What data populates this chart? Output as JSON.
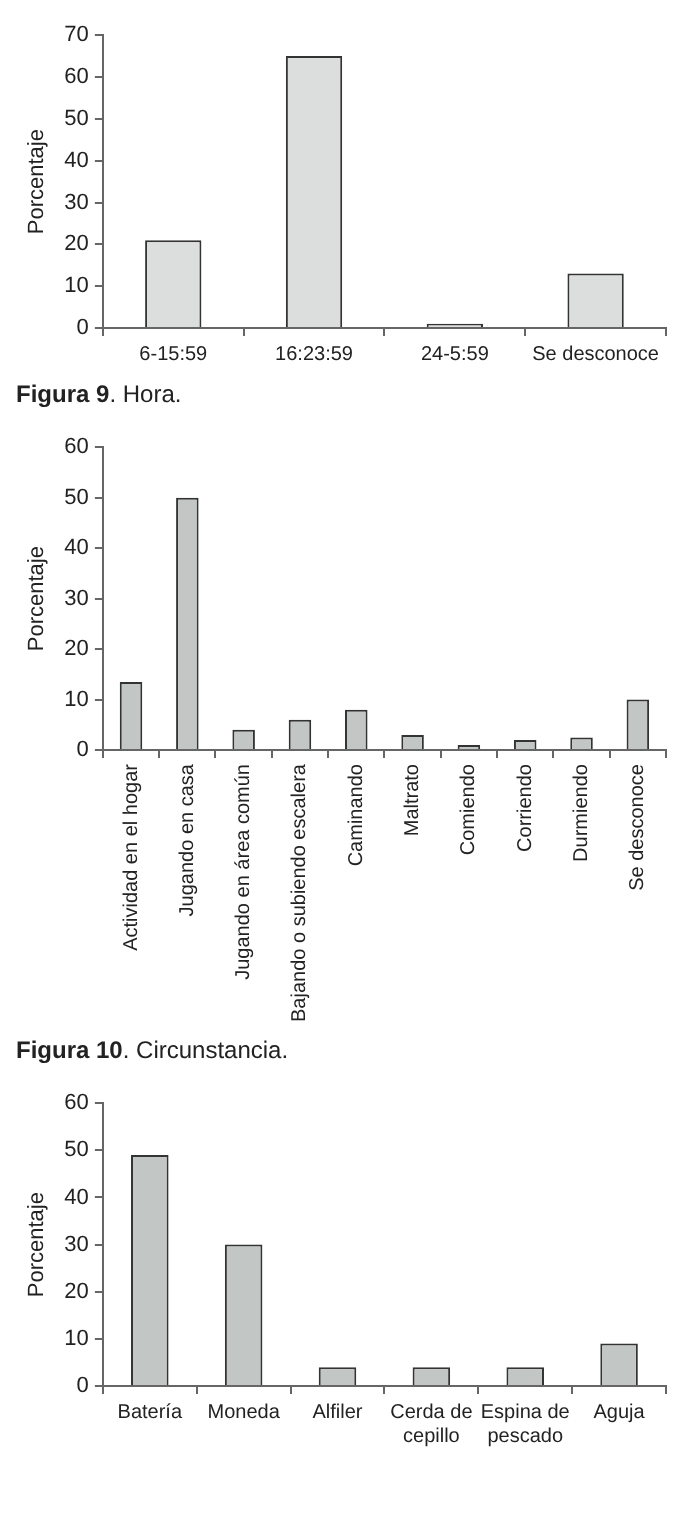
{
  "chart_data": [
    {
      "type": "bar",
      "categories": [
        "6-15:59",
        "16:23:59",
        "24-5:59",
        "Se desconoce"
      ],
      "values": [
        21,
        65,
        1,
        13
      ],
      "color": "#dcdedd",
      "ylabel": "Porcentaje",
      "ylim": [
        0,
        70
      ],
      "yticks": [
        0,
        10,
        20,
        30,
        40,
        50,
        60,
        70
      ],
      "grid": false,
      "legend": false,
      "annotations": [
        "Figura 9. Hora."
      ]
    },
    {
      "type": "bar",
      "categories": [
        "Actividad en el hogar",
        "Jugando en casa",
        "Jugando en área común",
        "Bajando o subiendo escalera",
        "Caminando",
        "Maltrato",
        "Comiendo",
        "Corriendo",
        "Durmiendo",
        "Se desconoce"
      ],
      "values": [
        13.5,
        50,
        4,
        6,
        8,
        3,
        1,
        2,
        2.5,
        10
      ],
      "color": "#c2c6c5",
      "ylabel": "Porcentaje",
      "ylim": [
        0,
        60
      ],
      "yticks": [
        0,
        10,
        20,
        30,
        40,
        50,
        60
      ],
      "grid": false,
      "legend": false,
      "annotations": [
        "Figura 10. Circunstancia."
      ]
    },
    {
      "type": "bar",
      "categories": [
        "Batería",
        "Moneda",
        "Alfiler",
        "Cerda de cepillo",
        "Espina de pescado",
        "Aguja"
      ],
      "values": [
        49,
        30,
        4,
        4,
        4,
        9
      ],
      "color": "#c2c6c5",
      "ylabel": "Porcentaje",
      "ylim": [
        0,
        60
      ],
      "yticks": [
        0,
        10,
        20,
        30,
        40,
        50,
        60
      ],
      "grid": false,
      "legend": false
    }
  ]
}
